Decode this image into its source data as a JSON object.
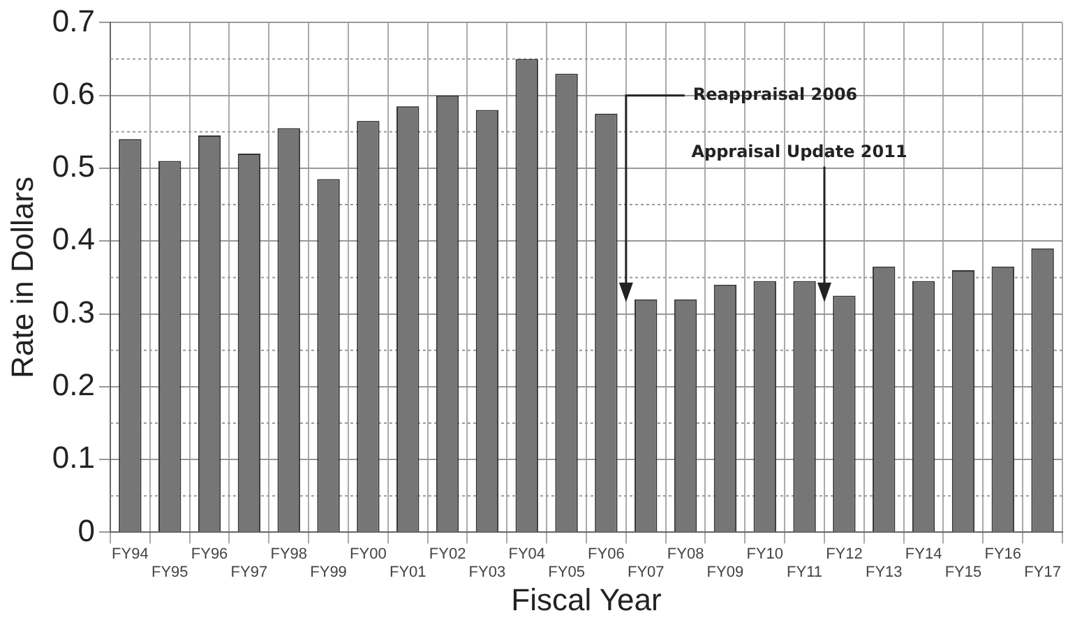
{
  "chart_data": {
    "type": "bar",
    "xlabel": "Fiscal Year",
    "ylabel": "Rate in Dollars",
    "categories": [
      "FY94",
      "FY95",
      "FY96",
      "FY97",
      "FY98",
      "FY99",
      "FY00",
      "FY01",
      "FY02",
      "FY03",
      "FY04",
      "FY05",
      "FY06",
      "FY07",
      "FY08",
      "FY09",
      "FY10",
      "FY11",
      "FY12",
      "FY13",
      "FY14",
      "FY15",
      "FY16",
      "FY17"
    ],
    "values": [
      0.54,
      0.51,
      0.545,
      0.52,
      0.555,
      0.485,
      0.565,
      0.585,
      0.6,
      0.58,
      0.65,
      0.63,
      0.575,
      0.32,
      0.32,
      0.34,
      0.345,
      0.345,
      0.325,
      0.365,
      0.345,
      0.36,
      0.365,
      0.39
    ],
    "color": "#767676",
    "ylim": [
      0,
      0.7
    ],
    "yticks": [
      0,
      0.1,
      0.2,
      0.3,
      0.4,
      0.5,
      0.6,
      0.7
    ],
    "grid": true,
    "annotations": [
      "Reappraisal 2006",
      "Appraisal Update 2011"
    ]
  }
}
